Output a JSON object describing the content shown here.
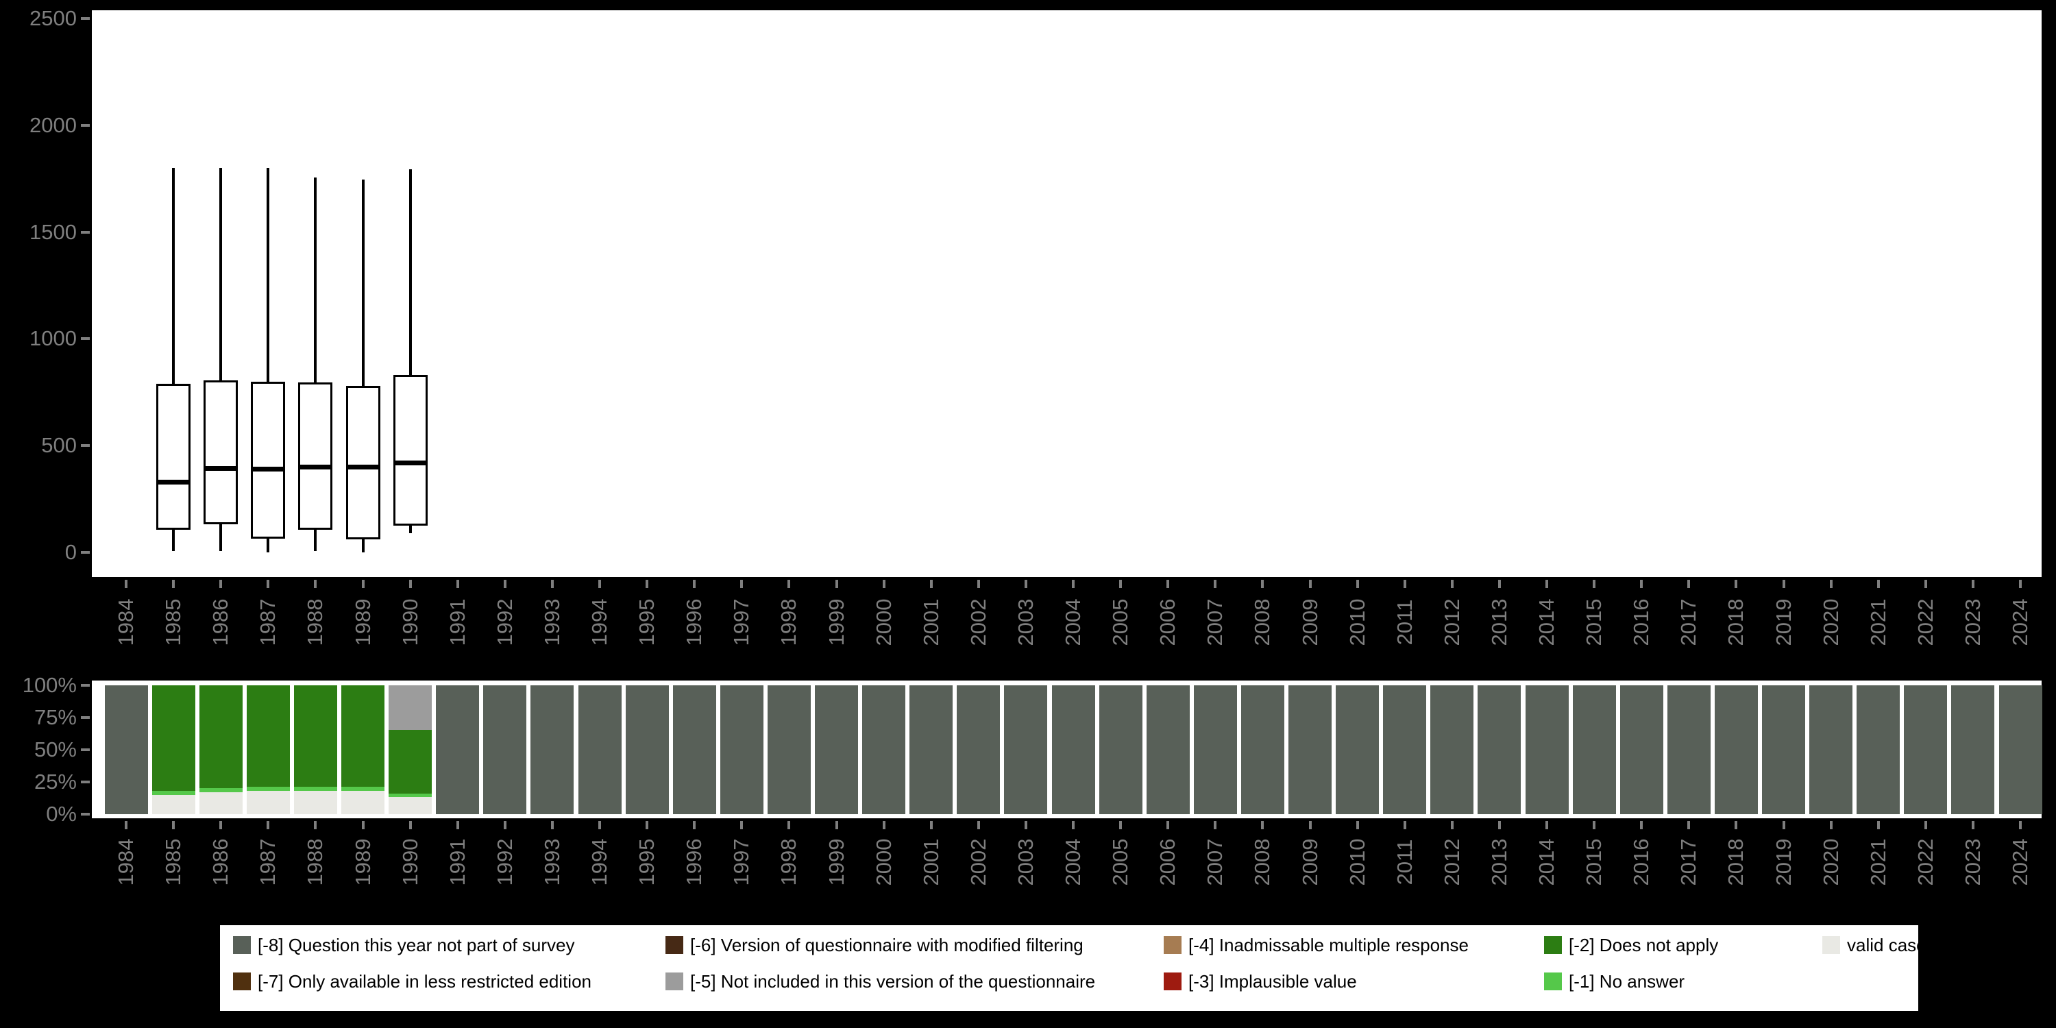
{
  "axes": {
    "years": [
      "1984",
      "1985",
      "1986",
      "1987",
      "1988",
      "1989",
      "1990",
      "1991",
      "1992",
      "1993",
      "1994",
      "1995",
      "1996",
      "1997",
      "1998",
      "1999",
      "2000",
      "2001",
      "2002",
      "2003",
      "2004",
      "2005",
      "2006",
      "2007",
      "2008",
      "2009",
      "2010",
      "2011",
      "2012",
      "2013",
      "2014",
      "2015",
      "2016",
      "2017",
      "2018",
      "2019",
      "2020",
      "2021",
      "2022",
      "2023",
      "2024"
    ],
    "boxplot_y_ticks": [
      {
        "label": "0",
        "value": 0
      },
      {
        "label": "500",
        "value": 500
      },
      {
        "label": "1000",
        "value": 1000
      },
      {
        "label": "1500",
        "value": 1500
      },
      {
        "label": "2000",
        "value": 2000
      },
      {
        "label": "2500",
        "value": 2500
      }
    ],
    "bar_y_ticks": [
      {
        "label": "0%",
        "value": 0
      },
      {
        "label": "25%",
        "value": 25
      },
      {
        "label": "50%",
        "value": 50
      },
      {
        "label": "75%",
        "value": 75
      },
      {
        "label": "100%",
        "value": 100
      }
    ]
  },
  "colors": {
    "page_background": "#000000",
    "plot_background": "#ffffff",
    "axis_text": "#7f7f7f",
    "box_stroke": "#000000",
    "categories": {
      "-8": "#586058",
      "-7": "#50300f",
      "-6": "#462915",
      "-5": "#9c9c9c",
      "-4": "#a67c52",
      "-3": "#9e1b10",
      "-2": "#2c7d13",
      "-1": "#55c84a",
      "valid": "#e9e9e4"
    }
  },
  "legend": {
    "rows": [
      [
        {
          "key": "-8",
          "label": "[-8] Question this year not part of survey"
        },
        {
          "key": "-6",
          "label": "[-6] Version of questionnaire with modified filtering"
        },
        {
          "key": "-4",
          "label": "[-4] Inadmissable multiple response"
        },
        {
          "key": "-2",
          "label": "[-2] Does not apply"
        },
        {
          "key": "valid",
          "label": "valid cases"
        }
      ],
      [
        {
          "key": "-7",
          "label": "[-7] Only available in less restricted edition"
        },
        {
          "key": "-5",
          "label": "[-5] Not included in this version of the questionnaire"
        },
        {
          "key": "-3",
          "label": "[-3] Implausible value"
        },
        {
          "key": "-1",
          "label": "[-1] No answer"
        }
      ]
    ]
  },
  "chart_data": [
    {
      "type": "boxplot",
      "title": "",
      "xlabel": "",
      "ylabel": "",
      "ylim": [
        0,
        2500
      ],
      "x_range": [
        "1984",
        "2024"
      ],
      "series": [
        {
          "x": "1985",
          "whisker_low": 5,
          "q1": 105,
          "median": 330,
          "q3": 790,
          "whisker_high": 1800
        },
        {
          "x": "1986",
          "whisker_low": 5,
          "q1": 130,
          "median": 395,
          "q3": 805,
          "whisker_high": 1800
        },
        {
          "x": "1987",
          "whisker_low": 0,
          "q1": 65,
          "median": 390,
          "q3": 800,
          "whisker_high": 1800
        },
        {
          "x": "1988",
          "whisker_low": 5,
          "q1": 105,
          "median": 400,
          "q3": 795,
          "whisker_high": 1755
        },
        {
          "x": "1989",
          "whisker_low": 0,
          "q1": 60,
          "median": 400,
          "q3": 780,
          "whisker_high": 1745
        },
        {
          "x": "1990",
          "whisker_low": 90,
          "q1": 125,
          "median": 420,
          "q3": 830,
          "whisker_high": 1795
        }
      ]
    },
    {
      "type": "bar",
      "stacked": true,
      "unit": "percent",
      "ylim": [
        0,
        100
      ],
      "categories": [
        "1984",
        "1985",
        "1986",
        "1987",
        "1988",
        "1989",
        "1990",
        "1991",
        "1992",
        "1993",
        "1994",
        "1995",
        "1996",
        "1997",
        "1998",
        "1999",
        "2000",
        "2001",
        "2002",
        "2003",
        "2004",
        "2005",
        "2006",
        "2007",
        "2008",
        "2009",
        "2010",
        "2011",
        "2012",
        "2013",
        "2014",
        "2015",
        "2016",
        "2017",
        "2018",
        "2019",
        "2020",
        "2021",
        "2022",
        "2023",
        "2024"
      ],
      "stack_order": [
        "valid",
        "-1",
        "-2",
        "-5",
        "-8"
      ],
      "bars": [
        {
          "year": "1984",
          "segments": {
            "-8": 100
          }
        },
        {
          "year": "1985",
          "segments": {
            "valid": 15,
            "-1": 3,
            "-2": 82
          }
        },
        {
          "year": "1986",
          "segments": {
            "valid": 17,
            "-1": 3,
            "-2": 80
          }
        },
        {
          "year": "1987",
          "segments": {
            "valid": 18,
            "-1": 3,
            "-2": 79
          }
        },
        {
          "year": "1988",
          "segments": {
            "valid": 18,
            "-1": 3,
            "-2": 79
          }
        },
        {
          "year": "1989",
          "segments": {
            "valid": 18,
            "-1": 3,
            "-2": 79
          }
        },
        {
          "year": "1990",
          "segments": {
            "valid": 13,
            "-1": 3,
            "-2": 49,
            "-5": 35
          }
        },
        {
          "year": "1991",
          "segments": {
            "-8": 100
          }
        },
        {
          "year": "1992",
          "segments": {
            "-8": 100
          }
        },
        {
          "year": "1993",
          "segments": {
            "-8": 100
          }
        },
        {
          "year": "1994",
          "segments": {
            "-8": 100
          }
        },
        {
          "year": "1995",
          "segments": {
            "-8": 100
          }
        },
        {
          "year": "1996",
          "segments": {
            "-8": 100
          }
        },
        {
          "year": "1997",
          "segments": {
            "-8": 100
          }
        },
        {
          "year": "1998",
          "segments": {
            "-8": 100
          }
        },
        {
          "year": "1999",
          "segments": {
            "-8": 100
          }
        },
        {
          "year": "2000",
          "segments": {
            "-8": 100
          }
        },
        {
          "year": "2001",
          "segments": {
            "-8": 100
          }
        },
        {
          "year": "2002",
          "segments": {
            "-8": 100
          }
        },
        {
          "year": "2003",
          "segments": {
            "-8": 100
          }
        },
        {
          "year": "2004",
          "segments": {
            "-8": 100
          }
        },
        {
          "year": "2005",
          "segments": {
            "-8": 100
          }
        },
        {
          "year": "2006",
          "segments": {
            "-8": 100
          }
        },
        {
          "year": "2007",
          "segments": {
            "-8": 100
          }
        },
        {
          "year": "2008",
          "segments": {
            "-8": 100
          }
        },
        {
          "year": "2009",
          "segments": {
            "-8": 100
          }
        },
        {
          "year": "2010",
          "segments": {
            "-8": 100
          }
        },
        {
          "year": "2011",
          "segments": {
            "-8": 100
          }
        },
        {
          "year": "2012",
          "segments": {
            "-8": 100
          }
        },
        {
          "year": "2013",
          "segments": {
            "-8": 100
          }
        },
        {
          "year": "2014",
          "segments": {
            "-8": 100
          }
        },
        {
          "year": "2015",
          "segments": {
            "-8": 100
          }
        },
        {
          "year": "2016",
          "segments": {
            "-8": 100
          }
        },
        {
          "year": "2017",
          "segments": {
            "-8": 100
          }
        },
        {
          "year": "2018",
          "segments": {
            "-8": 100
          }
        },
        {
          "year": "2019",
          "segments": {
            "-8": 100
          }
        },
        {
          "year": "2020",
          "segments": {
            "-8": 100
          }
        },
        {
          "year": "2021",
          "segments": {
            "-8": 100
          }
        },
        {
          "year": "2022",
          "segments": {
            "-8": 100
          }
        },
        {
          "year": "2023",
          "segments": {
            "-8": 100
          }
        },
        {
          "year": "2024",
          "segments": {
            "-8": 100
          }
        }
      ]
    }
  ]
}
